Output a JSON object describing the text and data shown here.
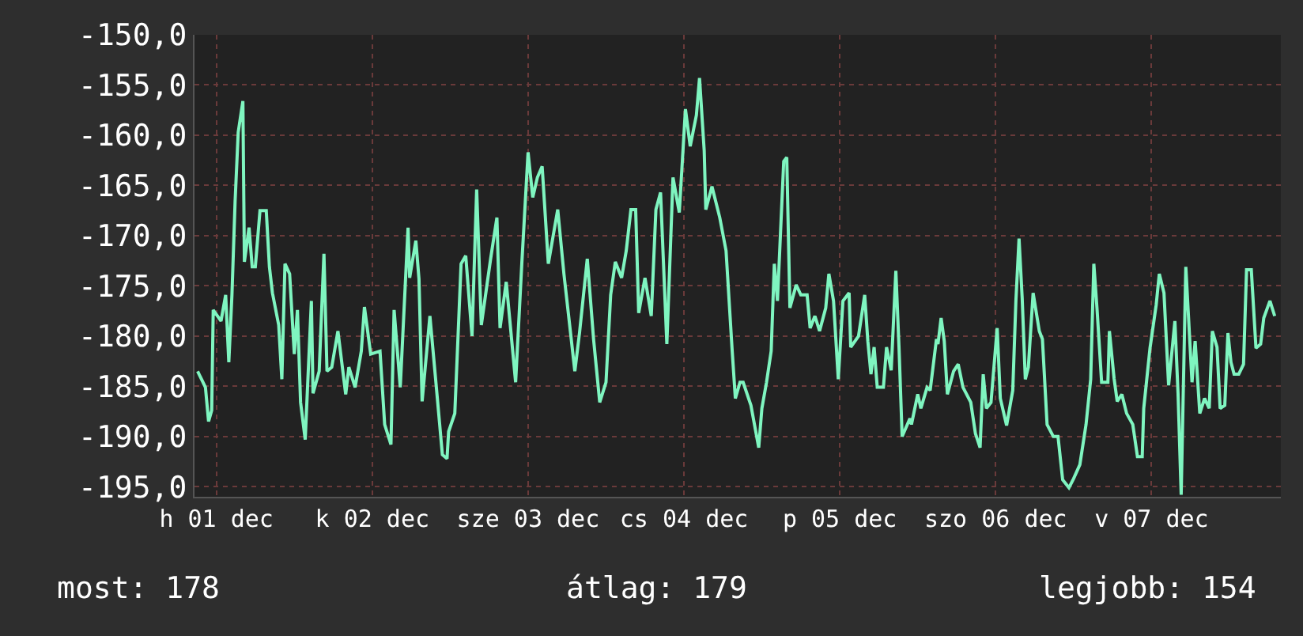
{
  "chart_data": {
    "type": "line",
    "x": [
      "--12-01T09:07",
      "--12-01T10:19",
      "--12-01T10:48",
      "--12-01T11:17",
      "--12-01T11:31",
      "--12-01T12:43",
      "--12-01T13:26",
      "--12-01T13:55",
      "--12-01T14:24",
      "--12-01T14:53",
      "--12-01T15:22",
      "--12-01T16:05",
      "--12-01T16:19",
      "--12-01T17:02",
      "--12-01T17:31",
      "--12-01T18:00",
      "--12-01T18:43",
      "--12-01T19:41",
      "--12-01T20:10",
      "--12-01T20:38",
      "--12-01T21:36",
      "--12-01T22:05",
      "--12-01T22:34",
      "--12-01T23:17",
      "--12-02T00:00",
      "--12-02T00:29",
      "--12-02T00:58",
      "--12-02T01:41",
      "--12-02T02:38",
      "--12-02T02:53",
      "--12-02T03:50",
      "--12-02T04:34",
      "--12-02T05:02",
      "--12-02T05:46",
      "--12-02T06:43",
      "--12-02T07:55",
      "--12-02T08:24",
      "--12-02T09:22",
      "--12-02T10:19",
      "--12-02T10:48",
      "--12-02T11:46",
      "--12-02T13:12",
      "--12-02T13:55",
      "--12-02T14:53",
      "--12-02T15:22",
      "--12-02T16:19",
      "--12-02T17:31",
      "--12-02T17:46",
      "--12-02T18:43",
      "--12-02T19:12",
      "--12-02T19:41",
      "--12-02T20:53",
      "--12-02T22:05",
      "--12-02T22:48",
      "--12-02T23:31",
      "--12-02T23:46",
      "--12-03T00:43",
      "--12-03T01:41",
      "--12-03T02:24",
      "--12-03T03:22",
      "--12-03T04:05",
      "--12-03T04:48",
      "--12-03T06:14",
      "--12-03T07:12",
      "--12-03T07:41",
      "--12-03T08:38",
      "--12-03T10:05",
      "--12-03T11:02",
      "--12-03T12:00",
      "--12-03T12:43",
      "--12-03T13:26",
      "--12-03T14:10",
      "--12-03T15:07",
      "--12-03T16:34",
      "--12-03T17:31",
      "--12-03T19:12",
      "--12-03T19:55",
      "--12-03T21:07",
      "--12-03T22:05",
      "--12-03T23:02",
      "--12-04T00:00",
      "--12-04T00:43",
      "--12-04T01:26",
      "--12-04T02:24",
      "--12-04T03:07",
      "--12-04T03:50",
      "--12-04T04:34",
      "--12-04T05:02",
      "--12-04T06:00",
      "--12-04T06:58",
      "--12-04T07:41",
      "--12-04T08:24",
      "--12-04T09:22",
      "--12-04T10:19",
      "--12-04T11:17",
      "--12-04T12:14",
      "--12-04T12:58",
      "--12-04T13:55",
      "--12-04T14:24",
      "--12-04T15:07",
      "--12-04T15:22",
      "--12-04T16:19",
      "--12-04T17:31",
      "--12-04T18:29",
      "--12-04T19:26",
      "--12-04T19:55",
      "--12-04T20:38",
      "--12-04T21:07",
      "--12-04T22:19",
      "--12-04T23:31",
      "--12-05T00:00",
      "--12-05T00:43",
      "--12-05T01:26",
      "--12-05T01:55",
      "--12-05T02:24",
      "--12-05T03:22",
      "--12-05T03:50",
      "--12-05T04:19",
      "--12-05T05:17",
      "--12-05T06:00",
      "--12-05T06:58",
      "--12-05T07:26",
      "--12-05T08:10",
      "--12-05T08:53",
      "--12-05T09:50",
      "--12-05T10:19",
      "--12-05T11:02",
      "--12-05T11:46",
      "--12-05T12:29",
      "--12-05T13:26",
      "--12-05T13:41",
      "--12-05T14:53",
      "--12-05T15:50",
      "--12-05T16:19",
      "--12-05T16:48",
      "--12-05T17:17",
      "--12-05T17:46",
      "--12-05T18:43",
      "--12-05T19:12",
      "--12-05T19:55",
      "--12-05T20:38",
      "--12-05T21:07",
      "--12-05T21:36",
      "--12-05T22:48",
      "--12-05T23:02",
      "--12-06T00:00",
      "--12-06T00:29",
      "--12-06T01:26",
      "--12-06T01:55",
      "--12-06T02:53",
      "--12-06T03:07",
      "--12-06T03:36",
      "--12-06T04:05",
      "--12-06T04:34",
      "--12-06T05:31",
      "--12-06T06:14",
      "--12-06T06:58",
      "--12-06T08:10",
      "--12-06T08:53",
      "--12-06T09:36",
      "--12-06T10:05",
      "--12-06T10:34",
      "--12-06T11:17",
      "--12-06T12:14",
      "--12-06T12:43",
      "--12-06T13:41",
      "--12-06T14:38",
      "--12-06T15:07",
      "--12-06T15:36",
      "--12-06T16:05",
      "--12-06T16:34",
      "--12-06T17:02",
      "--12-06T17:46",
      "--12-06T18:43",
      "--12-06T19:12",
      "--12-06T19:55",
      "--12-06T20:53",
      "--12-06T21:36",
      "--12-06T22:19",
      "--12-06T23:17",
      "--12-07T00:00",
      "--12-07T00:58",
      "--12-07T01:55",
      "--12-07T02:38",
      "--12-07T03:07",
      "--12-07T03:36",
      "--12-07T04:19",
      "--12-07T05:17",
      "--12-07T05:31",
      "--12-07T06:14",
      "--12-07T06:43",
      "--12-07T07:26",
      "--12-07T08:10",
      "--12-07T09:07",
      "--12-07T09:50",
      "--12-07T10:34",
      "--12-07T10:48",
      "--12-07T11:46",
      "--12-07T12:43",
      "--12-07T13:12",
      "--12-07T13:55",
      "--12-07T14:38",
      "--12-07T15:36",
      "--12-07T16:05",
      "--12-07T16:34",
      "--12-07T17:17",
      "--12-07T18:14",
      "--12-07T18:43",
      "--12-07T19:26",
      "--12-07T20:10",
      "--12-07T20:53",
      "--12-07T21:22",
      "--12-07T22:05",
      "--12-07T22:34",
      "--12-07T23:17",
      "--12-07T23:46",
      "--12-08T00:14",
      "--12-08T00:43",
      "--12-08T01:26",
      "--12-08T02:10",
      "--12-08T02:38",
      "--12-08T03:22",
      "--12-08T04:05",
      "--12-08T04:48",
      "--12-08T05:17",
      "--12-08T06:14",
      "--12-08T06:58"
    ],
    "series": [
      {
        "color": "#7ff5c0",
        "values": [
          -183.5,
          -185.1,
          -188.5,
          -187.4,
          -177.4,
          -178.5,
          -175.9,
          -182.6,
          -175.9,
          -166.6,
          -159.7,
          -156.6,
          -172.6,
          -169.2,
          -173.1,
          -173.1,
          -167.5,
          -167.5,
          -173.1,
          -175.7,
          -178.9,
          -184.3,
          -172.8,
          -173.8,
          -181.8,
          -177.4,
          -186.6,
          -190.3,
          -176.5,
          -185.7,
          -183.5,
          -171.8,
          -183.5,
          -183.1,
          -179.5,
          -185.8,
          -183.1,
          -185.1,
          -181.5,
          -177.1,
          -181.8,
          -181.5,
          -188.8,
          -190.8,
          -177.4,
          -185.1,
          -169.2,
          -174.2,
          -170.5,
          -174.3,
          -186.5,
          -178.0,
          -186.6,
          -191.8,
          -192.2,
          -189.5,
          -187.7,
          -172.8,
          -172.0,
          -180.0,
          -165.4,
          -178.9,
          -172.3,
          -168.2,
          -179.2,
          -174.6,
          -184.6,
          -172.8,
          -161.7,
          -166.2,
          -164.2,
          -163.1,
          -172.8,
          -167.4,
          -173.8,
          -183.5,
          -179.7,
          -172.3,
          -180.3,
          -186.6,
          -184.6,
          -175.9,
          -172.6,
          -174.2,
          -171.5,
          -167.4,
          -167.4,
          -177.7,
          -174.2,
          -178.0,
          -167.4,
          -165.7,
          -180.8,
          -164.2,
          -167.7,
          -157.4,
          -161.1,
          -158.0,
          -154.3,
          -161.5,
          -167.4,
          -165.1,
          -168.2,
          -171.5,
          -181.5,
          -186.2,
          -184.6,
          -184.6,
          -186.9,
          -191.1,
          -187.2,
          -184.6,
          -181.5,
          -172.8,
          -176.5,
          -162.6,
          -162.2,
          -177.2,
          -174.9,
          -175.9,
          -175.9,
          -179.2,
          -178.0,
          -179.5,
          -177.2,
          -173.8,
          -176.5,
          -184.3,
          -176.5,
          -175.7,
          -181.1,
          -180.0,
          -175.9,
          -180.5,
          -183.8,
          -181.1,
          -185.1,
          -185.1,
          -181.1,
          -183.4,
          -173.5,
          -181.1,
          -190.0,
          -188.2,
          -188.8,
          -185.8,
          -187.2,
          -185.1,
          -185.4,
          -180.3,
          -180.8,
          -178.2,
          -180.5,
          -185.8,
          -183.5,
          -182.8,
          -185.1,
          -186.6,
          -189.7,
          -191.1,
          -183.8,
          -187.2,
          -186.6,
          -179.2,
          -186.2,
          -188.9,
          -185.4,
          -176.5,
          -170.3,
          -176.2,
          -184.3,
          -183.1,
          -175.7,
          -179.5,
          -180.3,
          -188.8,
          -190.0,
          -190.0,
          -194.3,
          -195.1,
          -194.2,
          -192.8,
          -188.8,
          -184.3,
          -172.8,
          -177.2,
          -184.6,
          -184.6,
          -179.5,
          -184.2,
          -186.5,
          -185.8,
          -187.7,
          -188.8,
          -192.0,
          -192.0,
          -187.2,
          -181.2,
          -176.9,
          -173.8,
          -175.7,
          -184.9,
          -178.5,
          -185.7,
          -195.8,
          -173.1,
          -184.6,
          -180.5,
          -187.7,
          -186.2,
          -187.2,
          -179.5,
          -181.1,
          -187.2,
          -186.9,
          -179.7,
          -182.6,
          -183.8,
          -183.8,
          -182.8,
          -173.4,
          -173.4,
          -181.2,
          -180.8,
          -178.2,
          -176.5,
          -178.0
        ]
      }
    ],
    "xlim": [
      "--12-01T08:38",
      "--12-08T07:55"
    ],
    "xticks": [
      {
        "value": "--12-01T12:00",
        "label": "h 01 dec"
      },
      {
        "value": "--12-02T12:00",
        "label": "k 02 dec"
      },
      {
        "value": "--12-03T12:00",
        "label": "sze 03 dec"
      },
      {
        "value": "--12-04T12:00",
        "label": "cs 04 dec"
      },
      {
        "value": "--12-05T12:00",
        "label": "p 05 dec"
      },
      {
        "value": "--12-06T12:00",
        "label": "szo 06 dec"
      },
      {
        "value": "--12-07T12:00",
        "label": "v 07 dec"
      }
    ],
    "ylim": [
      -196,
      -150
    ],
    "yticks": [
      {
        "value": -150,
        "label": "-150,0"
      },
      {
        "value": -155,
        "label": "-155,0"
      },
      {
        "value": -160,
        "label": "-160,0"
      },
      {
        "value": -165,
        "label": "-165,0"
      },
      {
        "value": -170,
        "label": "-170,0"
      },
      {
        "value": -175,
        "label": "-175,0"
      },
      {
        "value": -180,
        "label": "-180,0"
      },
      {
        "value": -185,
        "label": "-185,0"
      },
      {
        "value": -190,
        "label": "-190,0"
      },
      {
        "value": -195,
        "label": "-195,0"
      }
    ],
    "grid": true,
    "marker": "none",
    "line_style": "solid",
    "annotations": [
      "most: 178",
      "átlag: 179",
      "legjobb: 154"
    ]
  }
}
